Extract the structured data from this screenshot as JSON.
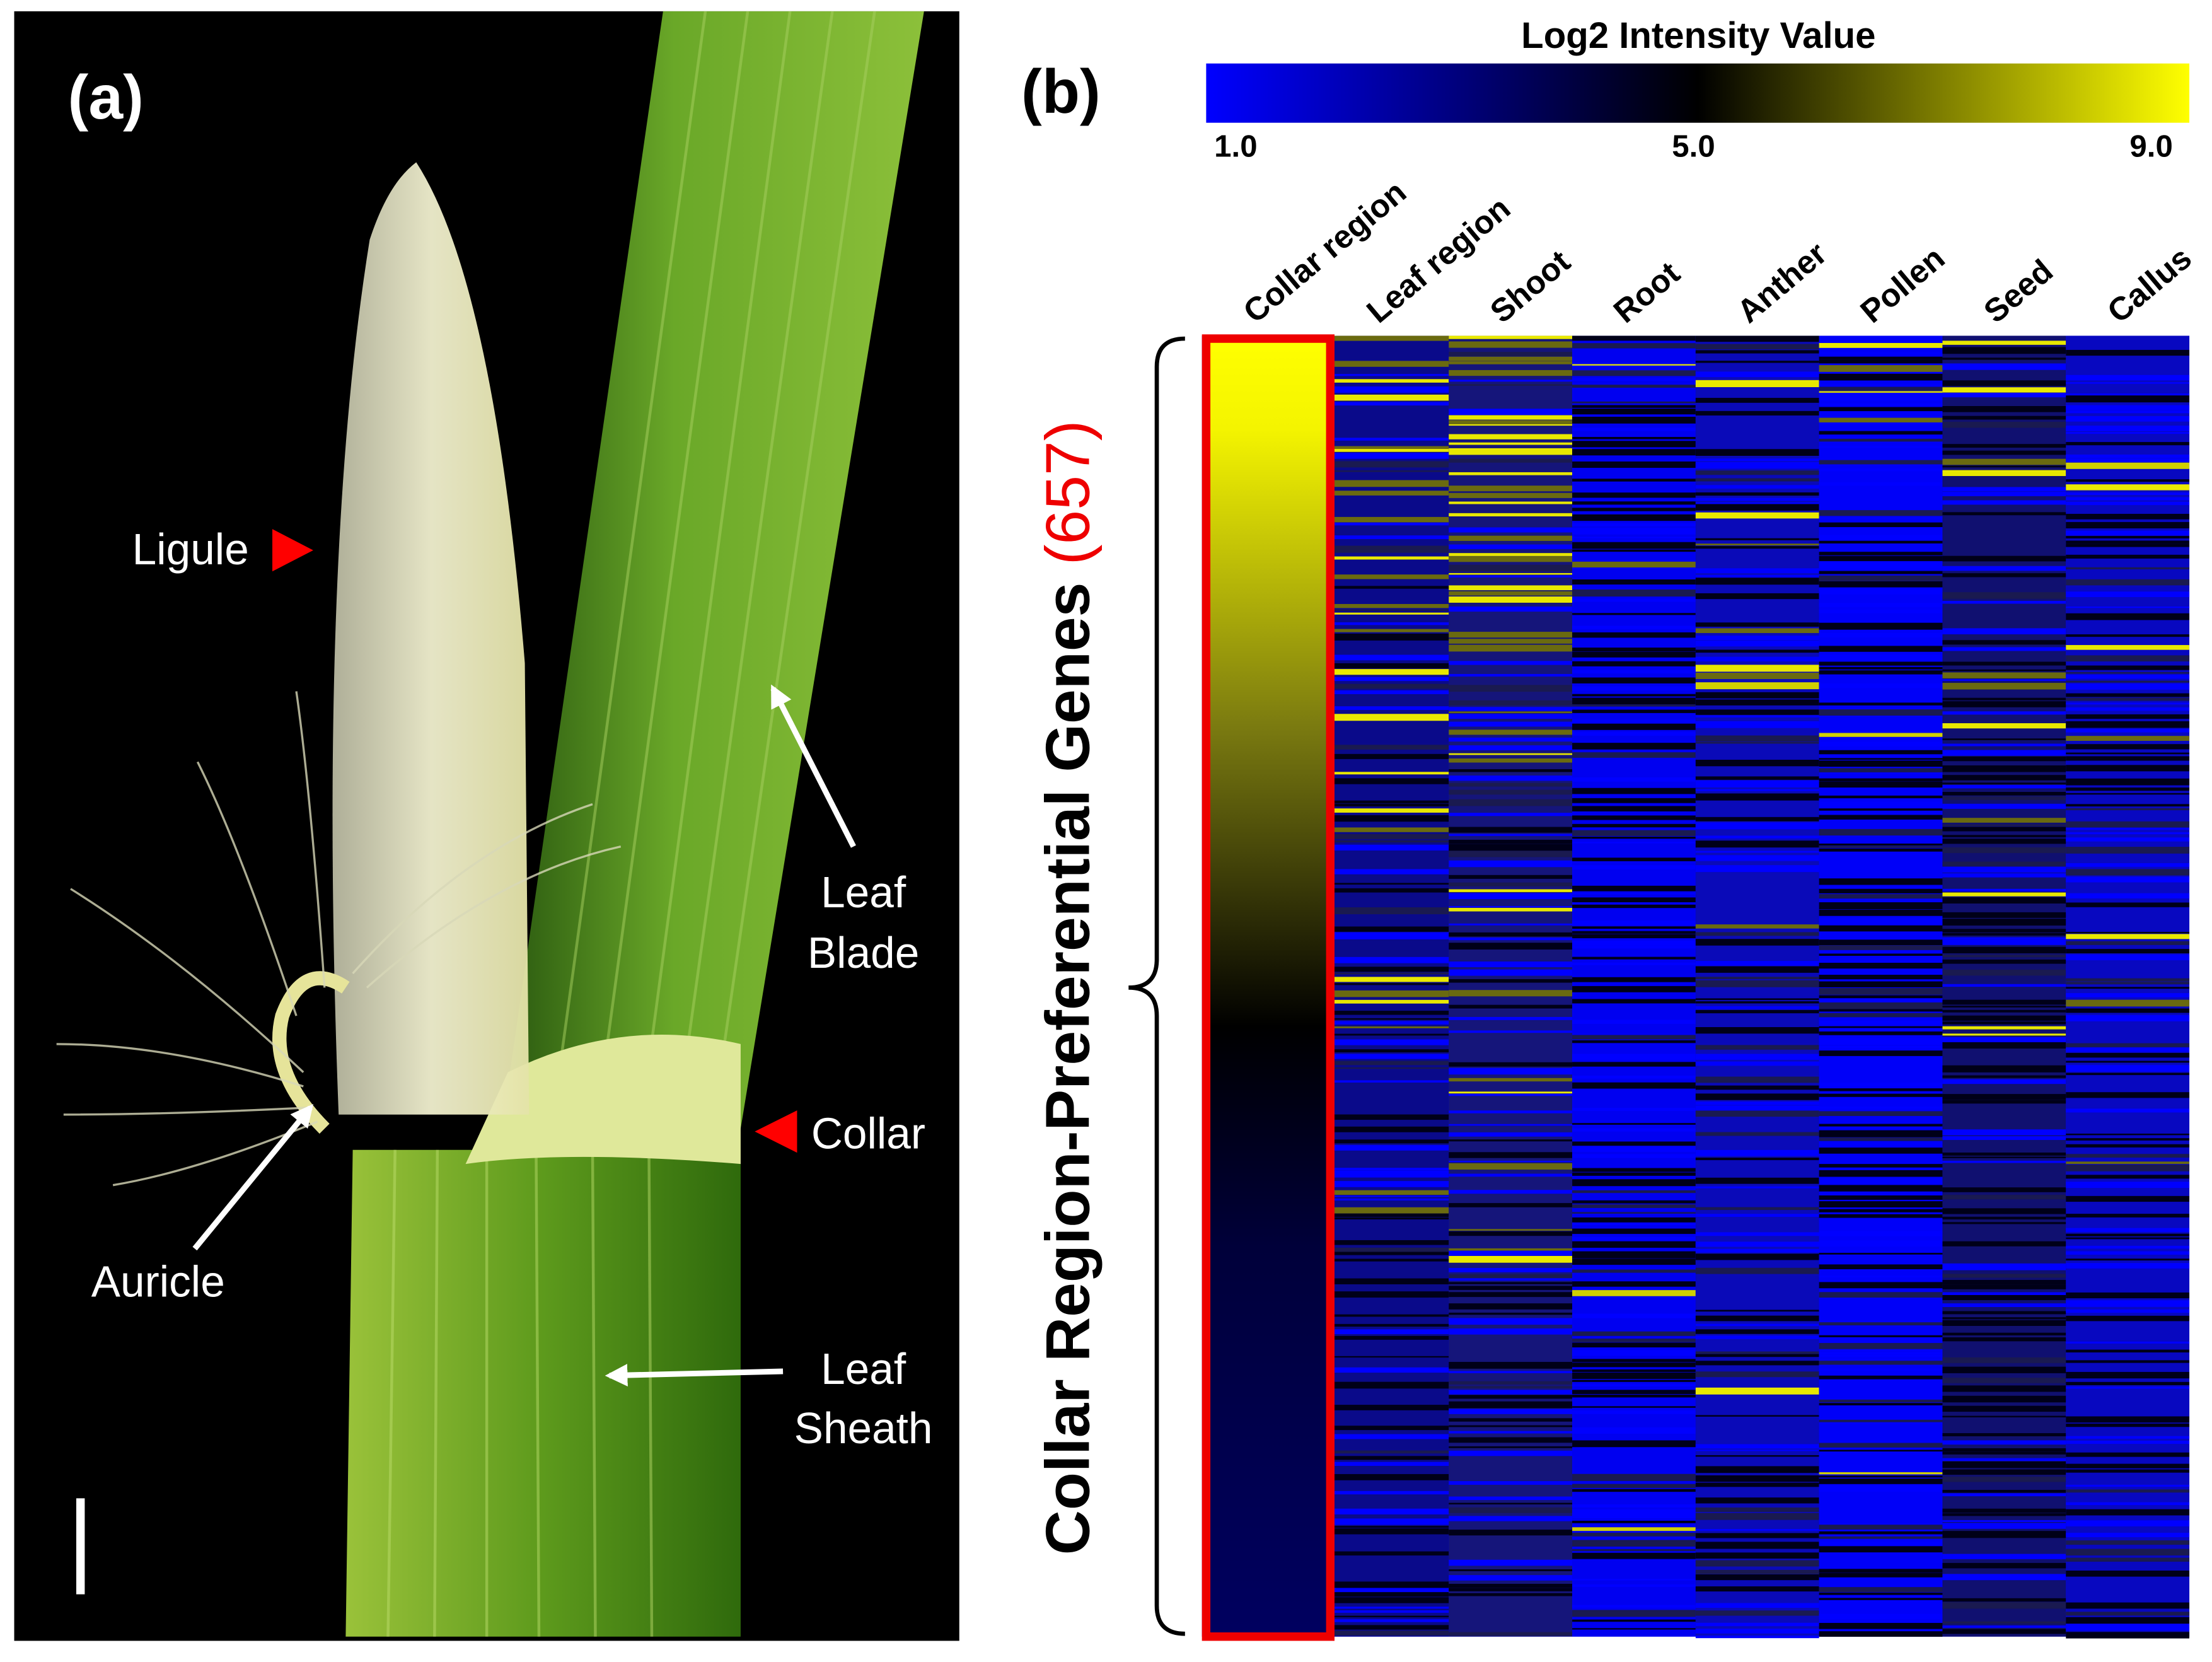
{
  "panel_a": {
    "label": "(a)",
    "annotations": {
      "ligule": [
        "Ligule"
      ],
      "leaf_blade": [
        "Leaf",
        "Blade"
      ],
      "collar": [
        "Collar"
      ],
      "auricle": [
        "Auricle"
      ],
      "leaf_sheath": [
        "Leaf",
        "Sheath"
      ]
    }
  },
  "panel_b": {
    "label": "(b)",
    "colorbar": {
      "title": "Log2 Intensity Value",
      "ticks": [
        "1.0",
        "5.0",
        "9.0"
      ]
    },
    "columns": [
      "Collar region",
      "Leaf region",
      "Shoot",
      "Root",
      "Anther",
      "Pollen",
      "Seed",
      "Callus"
    ],
    "row_label": "Collar Region-Preferential Genes",
    "row_count": "(657)"
  }
}
